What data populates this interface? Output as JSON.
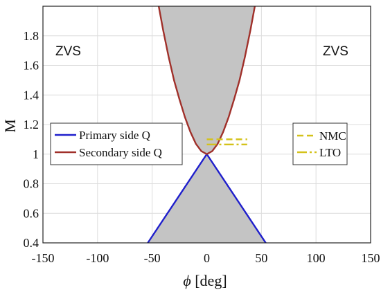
{
  "chart_data": {
    "type": "line",
    "xlabel_symbol": "ϕ",
    "xlabel_unit": "[deg]",
    "ylabel": "M",
    "xlim": [
      -150,
      150
    ],
    "ylim": [
      0.4,
      2.0
    ],
    "x_ticks": [
      -150,
      -100,
      -50,
      0,
      50,
      100,
      150
    ],
    "y_ticks": [
      0.4,
      0.6,
      0.8,
      1,
      1.2,
      1.4,
      1.6,
      1.8
    ],
    "grid": true,
    "region_labels": [
      "ZVS",
      "ZVS"
    ],
    "series": [
      {
        "name": "Primary side Q",
        "color": "#1f1fcc",
        "x": [
          -54,
          0,
          54
        ],
        "y": [
          0.4,
          1.0,
          0.4
        ]
      },
      {
        "name": "Secondary side Q",
        "color": "#a0302a",
        "x": [
          -44,
          -40,
          -35,
          -30,
          -25,
          -20,
          -15,
          -10,
          -5,
          0,
          5,
          10,
          15,
          20,
          25,
          30,
          35,
          40,
          44
        ],
        "y": [
          2.0,
          1.84,
          1.66,
          1.5,
          1.37,
          1.25,
          1.15,
          1.07,
          1.02,
          1.0,
          1.02,
          1.07,
          1.15,
          1.25,
          1.37,
          1.5,
          1.66,
          1.84,
          2.0
        ]
      },
      {
        "name": "NMC",
        "color": "#d4c21a",
        "style": "dashed",
        "x": [
          0,
          37
        ],
        "y": [
          1.1,
          1.1
        ]
      },
      {
        "name": "LTO",
        "color": "#d4c21a",
        "style": "dash-dot",
        "x": [
          0,
          37
        ],
        "y": [
          1.065,
          1.065
        ]
      }
    ],
    "legends": [
      {
        "placement": "left",
        "entries": [
          "Primary side Q",
          "Secondary side Q"
        ]
      },
      {
        "placement": "right",
        "entries": [
          "NMC",
          "LTO"
        ]
      }
    ]
  }
}
